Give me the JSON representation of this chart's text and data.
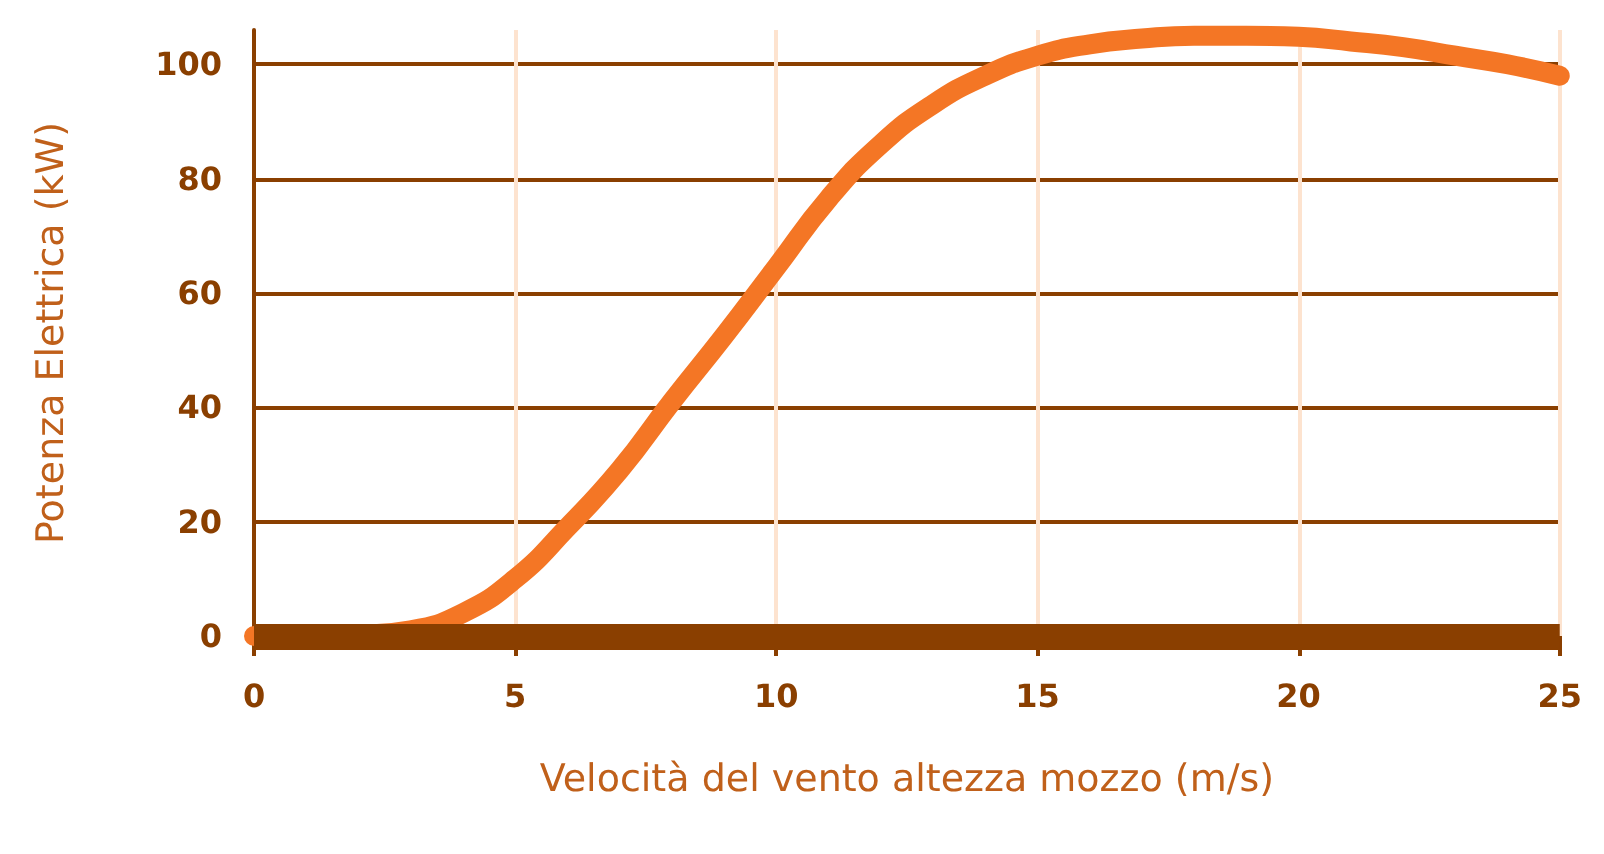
{
  "chart_data": {
    "type": "line",
    "xlabel": "Velocità del vento altezza mozzo (m/s)",
    "ylabel": "Potenza Elettrica (kW)",
    "x": [
      0,
      1,
      2,
      3,
      4,
      5,
      6,
      7,
      8,
      9,
      10,
      11,
      12,
      13,
      14,
      15,
      16,
      17,
      18,
      19,
      20,
      21,
      22,
      23,
      24,
      25
    ],
    "series": [
      {
        "color": "#f47625",
        "values": [
          0,
          0,
          0.2,
          1,
          4,
          10,
          19,
          29,
          41,
          52.5,
          64.5,
          76.5,
          86,
          93,
          98,
          101.5,
          103.5,
          104.5,
          105,
          105,
          104.8,
          104,
          103,
          101.5,
          100,
          98
        ]
      }
    ],
    "xlim": [
      0,
      25
    ],
    "xticks": [
      0,
      5,
      10,
      15,
      20,
      25
    ],
    "ylim": [
      0,
      106
    ],
    "yticks": [
      0,
      20,
      40,
      60,
      80,
      100
    ],
    "grid": true,
    "line_style": "solid"
  }
}
